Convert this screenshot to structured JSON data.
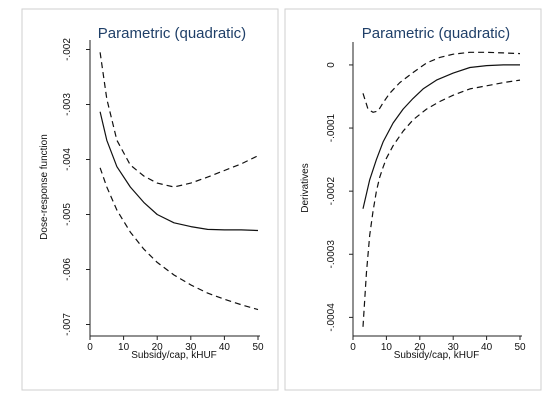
{
  "chart_data": [
    {
      "type": "line",
      "title": "Parametric (quadratic)",
      "xlabel": "Subsidy/cap, kHUF",
      "ylabel": "Dose-response function",
      "xlim": [
        0,
        50
      ],
      "ylim": [
        -0.0071,
        -0.0019
      ],
      "xticks": [
        0,
        10,
        20,
        30,
        40,
        50
      ],
      "yticks": [
        -0.002,
        -0.003,
        -0.004,
        -0.005,
        -0.006,
        -0.007
      ],
      "ytick_labels": [
        "-.002",
        "-.003",
        "-.004",
        "-.005",
        "-.006",
        "-.007"
      ],
      "grid": false,
      "series": [
        {
          "style": "dashed",
          "x": [
            3,
            5,
            8,
            12,
            16,
            20,
            25,
            30,
            35,
            40,
            45,
            50
          ],
          "y": [
            -0.00205,
            -0.0029,
            -0.00365,
            -0.0041,
            -0.0043,
            -0.00443,
            -0.0045,
            -0.00443,
            -0.00432,
            -0.0042,
            -0.00408,
            -0.00393
          ]
        },
        {
          "style": "solid",
          "x": [
            3,
            5,
            8,
            12,
            16,
            20,
            25,
            30,
            35,
            40,
            45,
            50
          ],
          "y": [
            -0.00313,
            -0.00365,
            -0.00413,
            -0.0045,
            -0.00478,
            -0.005,
            -0.00515,
            -0.00522,
            -0.00527,
            -0.00528,
            -0.00528,
            -0.00529
          ]
        },
        {
          "style": "dashed",
          "x": [
            3,
            5,
            8,
            12,
            16,
            20,
            25,
            30,
            35,
            40,
            45,
            50
          ],
          "y": [
            -0.00415,
            -0.0045,
            -0.00492,
            -0.00532,
            -0.00563,
            -0.00587,
            -0.0061,
            -0.00628,
            -0.00643,
            -0.00654,
            -0.00664,
            -0.00673
          ]
        }
      ]
    },
    {
      "type": "line",
      "title": "Parametric (quadratic)",
      "xlabel": "Subsidy/cap, kHUF",
      "ylabel": "Derivatives",
      "xlim": [
        0,
        50
      ],
      "ylim": [
        -0.00042,
        3e-05
      ],
      "xticks": [
        0,
        10,
        20,
        30,
        40,
        50
      ],
      "yticks": [
        0,
        -0.0001,
        -0.0002,
        -0.0003,
        -0.0004
      ],
      "ytick_labels": [
        "0",
        "-.0001",
        "-.0002",
        "-.0003",
        "-.0004"
      ],
      "grid": false,
      "series": [
        {
          "style": "dashed",
          "x": [
            3,
            4.5,
            6,
            7.5,
            9,
            11,
            14,
            18,
            22,
            26,
            30,
            35,
            40,
            45,
            50
          ],
          "y": [
            -4.5e-05,
            -7e-05,
            -7.5e-05,
            -7.3e-05,
            -6e-05,
            -4.5e-05,
            -2.8e-05,
            -1.2e-05,
            3e-06,
            1.2e-05,
            1.7e-05,
            2e-05,
            2e-05,
            1.9e-05,
            1.8e-05
          ]
        },
        {
          "style": "solid",
          "x": [
            3,
            5,
            7,
            9,
            12,
            15,
            18,
            21,
            25,
            30,
            35,
            40,
            45,
            50
          ],
          "y": [
            -0.000228,
            -0.000182,
            -0.00015,
            -0.000122,
            -9.2e-05,
            -7e-05,
            -5.3e-05,
            -3.8e-05,
            -2.4e-05,
            -1.3e-05,
            -4e-06,
            -1e-06,
            0.0,
            0.0
          ]
        },
        {
          "style": "dashed",
          "x": [
            3,
            4,
            5,
            6,
            7,
            8,
            9,
            10,
            12,
            15,
            18,
            22,
            26,
            30,
            35,
            40,
            45,
            50
          ],
          "y": [
            -0.000415,
            -0.00033,
            -0.00027,
            -0.000232,
            -0.0002,
            -0.000178,
            -0.000162,
            -0.000148,
            -0.000128,
            -0.000105,
            -8.7e-05,
            -7e-05,
            -5.8e-05,
            -4.8e-05,
            -3.8e-05,
            -3.3e-05,
            -2.8e-05,
            -2.4e-05
          ]
        }
      ]
    }
  ]
}
